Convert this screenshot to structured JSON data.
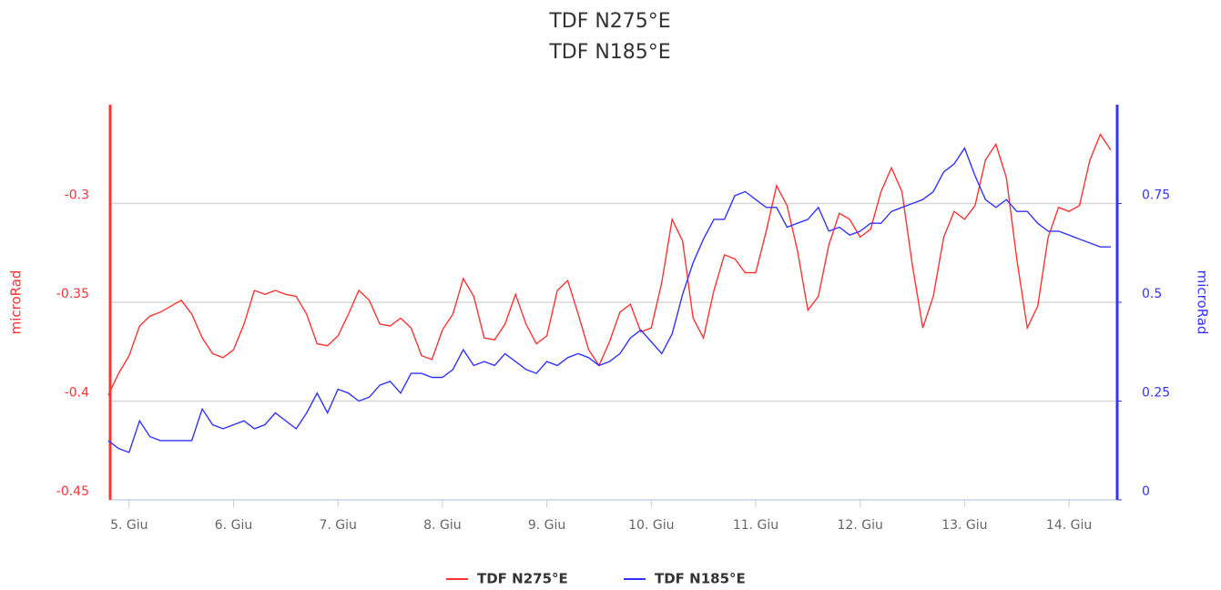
{
  "chart_data": {
    "type": "line",
    "title": "TDF N275°E",
    "subtitle": "TDF N185°E",
    "y_label": "microRad",
    "y2_label": "microRad",
    "x": [
      4.8,
      4.9,
      5.0,
      5.1,
      5.2,
      5.3,
      5.4,
      5.5,
      5.6,
      5.7,
      5.8,
      5.9,
      6.0,
      6.1,
      6.2,
      6.3,
      6.4,
      6.5,
      6.6,
      6.7,
      6.8,
      6.9,
      7.0,
      7.1,
      7.2,
      7.3,
      7.4,
      7.5,
      7.6,
      7.7,
      7.8,
      7.9,
      8.0,
      8.1,
      8.2,
      8.3,
      8.4,
      8.5,
      8.6,
      8.7,
      8.8,
      8.9,
      9.0,
      9.1,
      9.2,
      9.3,
      9.4,
      9.5,
      9.6,
      9.7,
      9.8,
      9.9,
      10.0,
      10.1,
      10.2,
      10.3,
      10.4,
      10.5,
      10.6,
      10.7,
      10.8,
      10.9,
      11.0,
      11.1,
      11.2,
      11.3,
      11.4,
      11.5,
      11.6,
      11.7,
      11.8,
      11.9,
      12.0,
      12.1,
      12.2,
      12.3,
      12.4,
      12.5,
      12.6,
      12.7,
      12.8,
      12.9,
      13.0,
      13.1,
      13.2,
      13.3,
      13.4,
      13.5,
      13.6,
      13.7,
      13.8,
      13.9,
      14.0,
      14.1,
      14.2,
      14.3,
      14.4
    ],
    "series": [
      {
        "name": "TDF N275°E",
        "color": "#ff3333",
        "axis": "y",
        "values": [
          -0.397,
          -0.386,
          -0.377,
          -0.362,
          -0.357,
          -0.355,
          -0.352,
          -0.349,
          -0.356,
          -0.368,
          -0.376,
          -0.378,
          -0.374,
          -0.361,
          -0.344,
          -0.346,
          -0.344,
          -0.346,
          -0.347,
          -0.356,
          -0.371,
          -0.372,
          -0.367,
          -0.356,
          -0.344,
          -0.349,
          -0.361,
          -0.362,
          -0.358,
          -0.363,
          -0.377,
          -0.379,
          -0.364,
          -0.356,
          -0.338,
          -0.347,
          -0.368,
          -0.369,
          -0.361,
          -0.346,
          -0.361,
          -0.371,
          -0.367,
          -0.344,
          -0.339,
          -0.356,
          -0.374,
          -0.382,
          -0.37,
          -0.355,
          -0.351,
          -0.365,
          -0.363,
          -0.34,
          -0.308,
          -0.319,
          -0.358,
          -0.368,
          -0.344,
          -0.326,
          -0.328,
          -0.335,
          -0.335,
          -0.314,
          -0.291,
          -0.301,
          -0.324,
          -0.354,
          -0.347,
          -0.321,
          -0.305,
          -0.308,
          -0.317,
          -0.313,
          -0.294,
          -0.282,
          -0.294,
          -0.331,
          -0.363,
          -0.347,
          -0.317,
          -0.304,
          -0.308,
          -0.301,
          -0.278,
          -0.27,
          -0.287,
          -0.328,
          -0.363,
          -0.352,
          -0.317,
          -0.302,
          -0.304,
          -0.301,
          -0.278,
          -0.265,
          -0.273
        ]
      },
      {
        "name": "TDF N185°E",
        "color": "#3333ff",
        "axis": "y2",
        "values": [
          0.15,
          0.13,
          0.12,
          0.2,
          0.16,
          0.15,
          0.15,
          0.15,
          0.15,
          0.23,
          0.19,
          0.18,
          0.19,
          0.2,
          0.18,
          0.19,
          0.22,
          0.2,
          0.18,
          0.22,
          0.27,
          0.22,
          0.28,
          0.27,
          0.25,
          0.26,
          0.29,
          0.3,
          0.27,
          0.32,
          0.32,
          0.31,
          0.31,
          0.33,
          0.38,
          0.34,
          0.35,
          0.34,
          0.37,
          0.35,
          0.33,
          0.32,
          0.35,
          0.34,
          0.36,
          0.37,
          0.36,
          0.34,
          0.35,
          0.37,
          0.41,
          0.43,
          0.4,
          0.37,
          0.42,
          0.52,
          0.6,
          0.66,
          0.71,
          0.71,
          0.77,
          0.78,
          0.76,
          0.74,
          0.74,
          0.69,
          0.7,
          0.71,
          0.74,
          0.68,
          0.69,
          0.67,
          0.68,
          0.7,
          0.7,
          0.73,
          0.74,
          0.75,
          0.76,
          0.78,
          0.83,
          0.85,
          0.89,
          0.82,
          0.76,
          0.74,
          0.76,
          0.73,
          0.73,
          0.7,
          0.68,
          0.68,
          0.67,
          0.66,
          0.65,
          0.64,
          0.64
        ]
      }
    ],
    "xlim": [
      4.81,
      14.47
    ],
    "xticks": [
      {
        "value": 5,
        "label": "5. Giu"
      },
      {
        "value": 6,
        "label": "6. Giu"
      },
      {
        "value": 7,
        "label": "7. Giu"
      },
      {
        "value": 8,
        "label": "8. Giu"
      },
      {
        "value": 9,
        "label": "9. Giu"
      },
      {
        "value": 10,
        "label": "10. Giu"
      },
      {
        "value": 11,
        "label": "11. Giu"
      },
      {
        "value": 12,
        "label": "12. Giu"
      },
      {
        "value": 13,
        "label": "13. Giu"
      },
      {
        "value": 14,
        "label": "14. Giu"
      }
    ],
    "ylim": [
      -0.45,
      -0.25
    ],
    "yticks": [
      -0.45,
      -0.4,
      -0.35,
      -0.3
    ],
    "y2lim": [
      0,
      1
    ],
    "y2ticks": [
      0,
      0.25,
      0.5,
      0.75
    ],
    "grid": true,
    "legend": "bottom"
  }
}
